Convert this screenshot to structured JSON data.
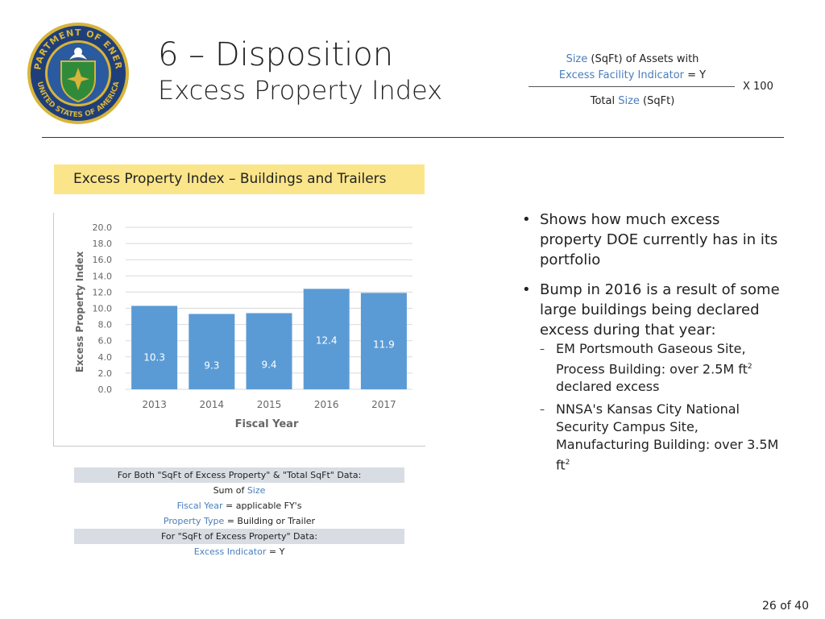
{
  "header": {
    "title": "6 – Disposition",
    "subtitle": "Excess Property Index"
  },
  "seal": {
    "top_text": "DEPARTMENT OF ENERGY",
    "bottom_text": "UNITED STATES OF AMERICA",
    "colors": {
      "ring": "#1f3f7a",
      "gold": "#d8b43a",
      "shield": "#2f8b3a"
    }
  },
  "formula": {
    "num_line1_term": "Size",
    "num_line1_rest": " (SqFt) of Assets with",
    "num_line2_term": "Excess Facility Indicator",
    "num_line2_rest": " = Y",
    "den_prefix": "Total ",
    "den_term": "Size",
    "den_rest": " (SqFt)",
    "multiplier": "X  100"
  },
  "banner": {
    "label": "Excess Property Index – Buildings and Trailers"
  },
  "chart_data": {
    "type": "bar",
    "categories": [
      "2013",
      "2014",
      "2015",
      "2016",
      "2017"
    ],
    "values": [
      10.3,
      9.3,
      9.4,
      12.4,
      11.9
    ],
    "data_labels": [
      "10.3",
      "9.3",
      "9.4",
      "12.4",
      "11.9"
    ],
    "ylim": [
      0,
      20
    ],
    "yticks": [
      "0.0",
      "2.0",
      "4.0",
      "6.0",
      "8.0",
      "10.0",
      "12.0",
      "14.0",
      "16.0",
      "18.0",
      "20.0"
    ],
    "xlabel": "Fiscal Year",
    "ylabel": "Excess Property Index",
    "bar_color": "#5b9bd5",
    "grid": true
  },
  "bullets": {
    "b1": "Shows how much excess property DOE currently has in its portfolio",
    "b2": "Bump in 2016 is a result of some large buildings being declared excess during that year:",
    "sub1_pre": "EM Portsmouth Gaseous Site, Process Building: over 2.5M ft",
    "sub1_sup": "2",
    "sub1_post": " declared excess",
    "sub2_pre": "NNSA's Kansas City National Security Campus Site, Manufacturing Building: over 3.5M ft",
    "sub2_sup": "2"
  },
  "filters": {
    "r1": "For Both \"SqFt of Excess Property\" & \"Total SqFt\" Data:",
    "r2_pre": "Sum of ",
    "r2_term": "Size",
    "r3_term": "Fiscal Year",
    "r3_rest": " = applicable FY's",
    "r4_term": "Property Type",
    "r4_rest": " = Building or Trailer",
    "r5": "For \"SqFt of Excess Property\" Data:",
    "r6_term": "Excess Indicator",
    "r6_rest": " = Y"
  },
  "page": {
    "number": "26 of 40"
  }
}
